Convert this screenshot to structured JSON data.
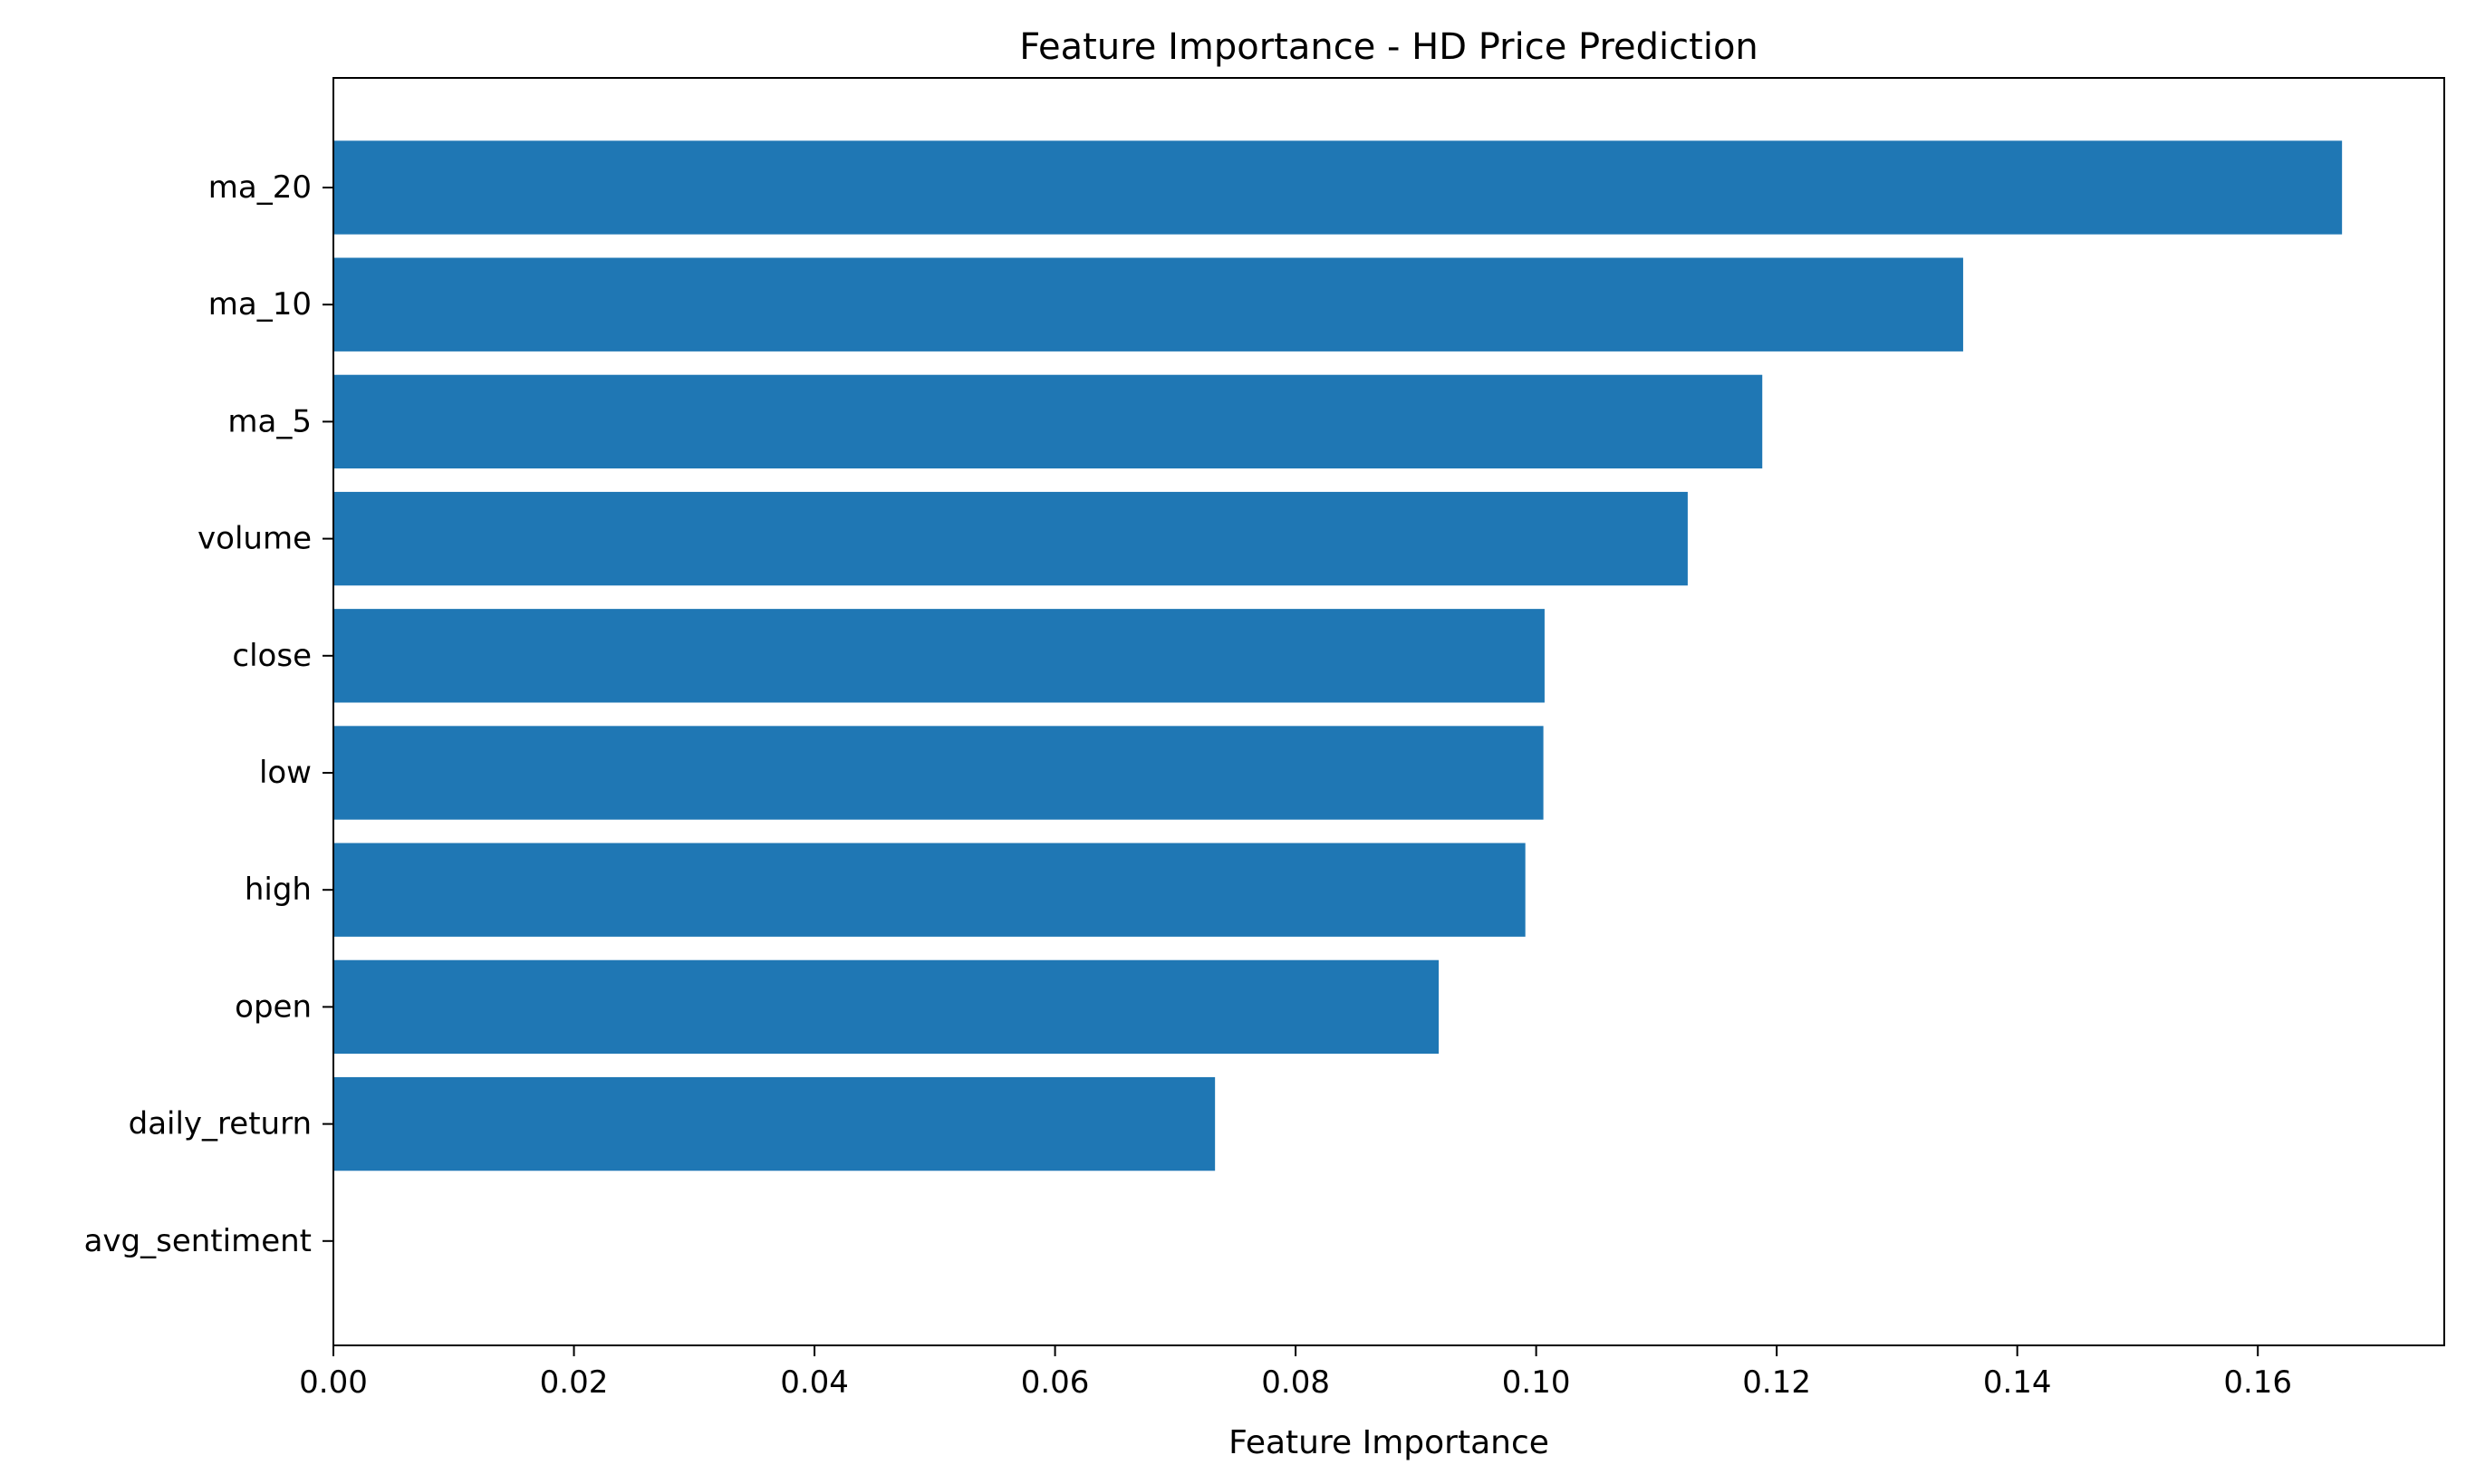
{
  "chart_data": {
    "type": "bar",
    "orientation": "horizontal",
    "title": "Feature Importance - HD Price Prediction",
    "xlabel": "Feature Importance",
    "ylabel": "",
    "categories": [
      "ma_20",
      "ma_10",
      "ma_5",
      "volume",
      "close",
      "low",
      "high",
      "open",
      "daily_return",
      "avg_sentiment"
    ],
    "values": [
      0.167,
      0.1355,
      0.1188,
      0.1126,
      0.1007,
      0.1006,
      0.0991,
      0.0919,
      0.0733,
      0.0
    ],
    "xlim": [
      0,
      0.1755
    ],
    "xticks": [
      0.0,
      0.02,
      0.04,
      0.06,
      0.08,
      0.1,
      0.12,
      0.14,
      0.16
    ],
    "xtick_labels": [
      "0.00",
      "0.02",
      "0.04",
      "0.06",
      "0.08",
      "0.10",
      "0.12",
      "0.14",
      "0.16"
    ],
    "bar_color": "#1f77b4",
    "grid": false,
    "legend": "none"
  }
}
